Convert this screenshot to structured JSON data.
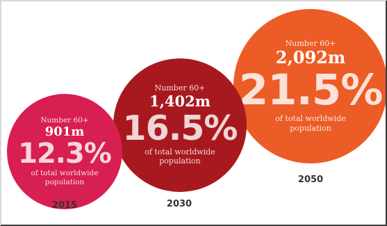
{
  "chart_data": {
    "type": "bubble",
    "title": "",
    "categories": [
      "2015",
      "2030",
      "2050"
    ],
    "series": [
      {
        "name": "Number 60+",
        "values": [
          901,
          1402,
          2092
        ],
        "unit": "m"
      },
      {
        "name": "of total worldwide population",
        "values": [
          12.3,
          16.5,
          21.5
        ],
        "unit": "%"
      }
    ],
    "colors": [
      "#d81f52",
      "#a8191f",
      "#ec5c26"
    ]
  },
  "items": [
    {
      "year": "2015",
      "label": "Number 60+",
      "count": "901m",
      "percent": "12.3%",
      "desc_line1": "of total worldwide",
      "desc_line2": "population"
    },
    {
      "year": "2030",
      "label": "Number 60+",
      "count": "1,402m",
      "percent": "16.5%",
      "desc_line1": "of total worldwide",
      "desc_line2": "population"
    },
    {
      "year": "2050",
      "label": "Number 60+",
      "count": "2,092m",
      "percent": "21.5%",
      "desc_line1": "of total worldwide",
      "desc_line2": "population"
    }
  ]
}
